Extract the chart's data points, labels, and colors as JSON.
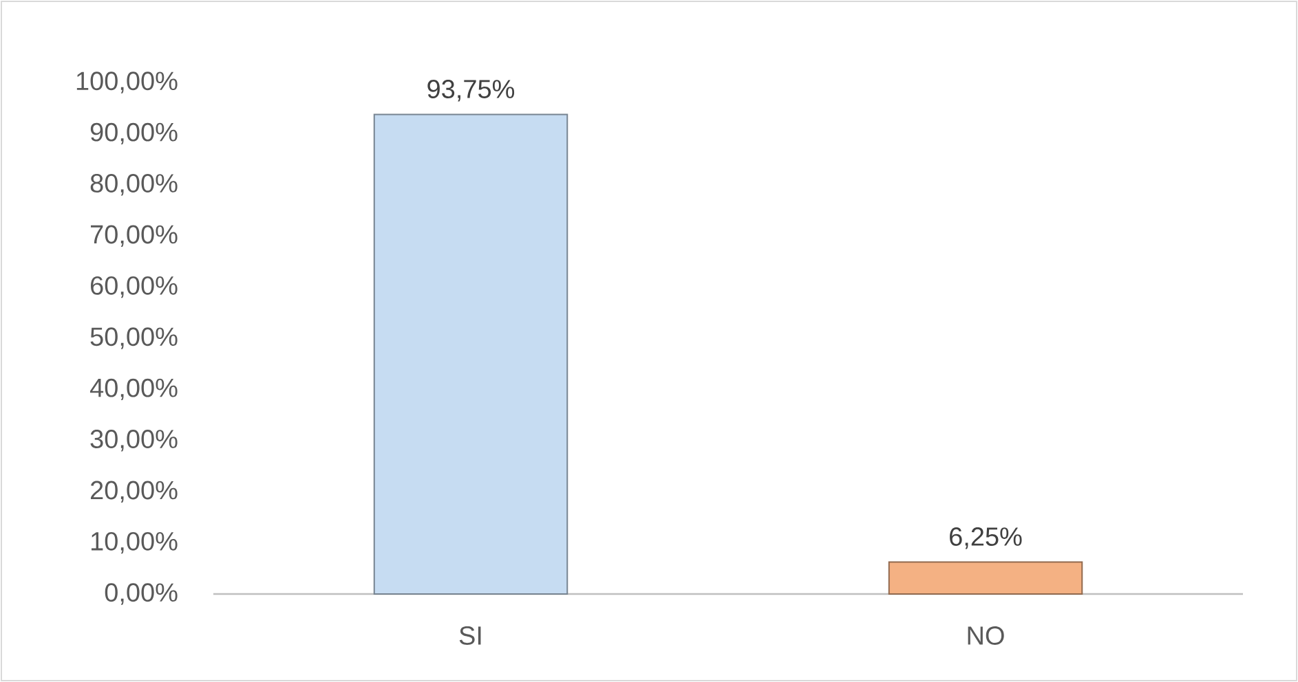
{
  "chart_data": {
    "type": "bar",
    "categories": [
      "SI",
      "NO"
    ],
    "values": [
      93.75,
      6.25
    ],
    "colors": [
      "#c6dcf2",
      "#f4b183"
    ],
    "value_labels": [
      "93,75%",
      "6,25%"
    ],
    "ylim": [
      0,
      100
    ],
    "yticks": [
      {
        "value": 0,
        "label": "0,00%"
      },
      {
        "value": 10,
        "label": "10,00%"
      },
      {
        "value": 20,
        "label": "20,00%"
      },
      {
        "value": 30,
        "label": "30,00%"
      },
      {
        "value": 40,
        "label": "40,00%"
      },
      {
        "value": 50,
        "label": "50,00%"
      },
      {
        "value": 60,
        "label": "60,00%"
      },
      {
        "value": 70,
        "label": "70,00%"
      },
      {
        "value": 80,
        "label": "80,00%"
      },
      {
        "value": 90,
        "label": "90,00%"
      },
      {
        "value": 100,
        "label": "100,00%"
      }
    ]
  }
}
